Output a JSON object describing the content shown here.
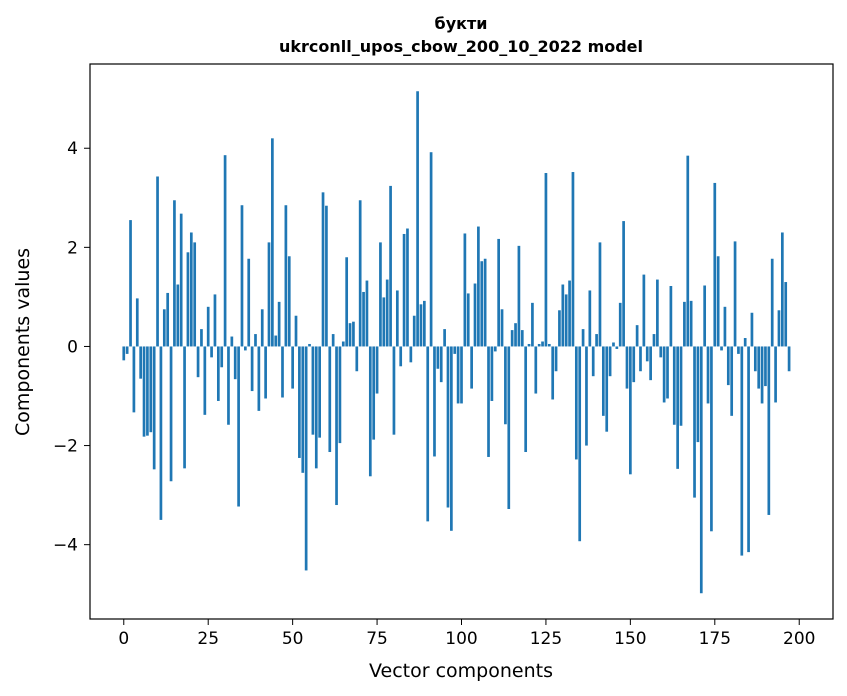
{
  "chart_data": {
    "type": "bar",
    "title_line1": "букти",
    "title_line2": "ukrconll_upos_cbow_200_10_2022 model",
    "xlabel": "Vector components",
    "ylabel": "Components values",
    "xlim": [
      -10,
      210
    ],
    "ylim": [
      -5.5,
      5.7
    ],
    "xticks": [
      0,
      25,
      50,
      75,
      100,
      125,
      150,
      175,
      200
    ],
    "yticks": [
      -4,
      -2,
      0,
      2,
      4
    ],
    "ytick_labels": [
      "−4",
      "−2",
      "0",
      "2",
      "4"
    ],
    "bar_color": "#1f77b4",
    "values": [
      -0.28,
      -0.15,
      2.55,
      -1.33,
      0.97,
      -0.65,
      -1.82,
      -1.8,
      -1.73,
      -2.48,
      3.43,
      -3.5,
      0.75,
      1.08,
      -2.72,
      2.95,
      1.25,
      2.68,
      -2.46,
      1.9,
      2.3,
      2.1,
      -0.62,
      0.35,
      -1.38,
      0.8,
      -0.22,
      1.05,
      -1.1,
      -0.42,
      3.86,
      -1.58,
      0.2,
      -0.66,
      -3.23,
      2.85,
      -0.08,
      1.77,
      -0.9,
      0.25,
      -1.3,
      0.75,
      -1.05,
      2.1,
      4.2,
      0.22,
      0.9,
      -1.03,
      2.85,
      1.82,
      -0.85,
      0.62,
      -2.25,
      -2.55,
      -4.52,
      0.05,
      -1.78,
      -2.46,
      -1.84,
      3.11,
      2.84,
      -2.13,
      0.25,
      -3.2,
      -1.95,
      0.1,
      1.8,
      0.47,
      0.5,
      -0.5,
      2.95,
      1.1,
      1.33,
      -2.62,
      -1.88,
      -0.95,
      2.1,
      0.99,
      1.35,
      3.24,
      -1.78,
      1.13,
      -0.4,
      2.27,
      2.38,
      -0.32,
      0.62,
      5.15,
      0.85,
      0.92,
      -3.53,
      3.92,
      -2.22,
      -0.45,
      -0.72,
      0.35,
      -3.25,
      -3.72,
      -0.15,
      -1.15,
      -1.15,
      2.28,
      1.07,
      -0.85,
      1.27,
      2.42,
      1.72,
      1.77,
      -2.23,
      -1.1,
      -0.1,
      2.17,
      0.75,
      -1.57,
      -3.28,
      0.33,
      0.47,
      2.03,
      0.33,
      -2.13,
      0.05,
      0.88,
      -0.95,
      0.05,
      0.1,
      3.5,
      0.05,
      -1.07,
      -0.5,
      0.73,
      1.25,
      1.05,
      1.33,
      3.52,
      -2.28,
      -3.93,
      0.35,
      -2.0,
      1.13,
      -0.6,
      0.25,
      2.1,
      -1.4,
      -1.72,
      -0.6,
      0.08,
      -0.05,
      0.88,
      2.53,
      -0.85,
      -2.58,
      -0.72,
      0.43,
      -0.5,
      1.45,
      -0.3,
      -0.68,
      0.25,
      1.35,
      -0.22,
      -1.13,
      -1.05,
      1.22,
      -1.58,
      -2.47,
      -1.6,
      0.9,
      3.85,
      0.92,
      -3.05,
      -1.93,
      -4.98,
      1.23,
      -1.15,
      -3.73,
      3.3,
      1.82,
      -0.08,
      0.8,
      -0.78,
      -1.4,
      2.12,
      -0.15,
      -4.22,
      0.17,
      -4.15,
      0.68,
      -0.5,
      -0.85,
      -1.15,
      -0.8,
      -3.4,
      1.77,
      -1.13,
      0.73,
      2.3,
      1.3,
      -0.5
    ]
  }
}
